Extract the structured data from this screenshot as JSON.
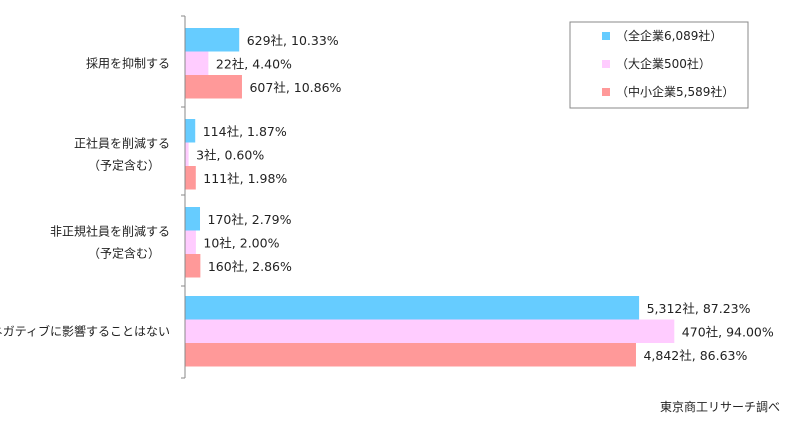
{
  "chart_data": {
    "type": "bar",
    "orientation": "horizontal",
    "categories": [
      [
        "採用を抑制する"
      ],
      [
        "正社員を削減する",
        "（予定含む）"
      ],
      [
        "非正規社員を削減する",
        "（予定含む）"
      ],
      [
        "ネガティブに影響することはない"
      ]
    ],
    "series": [
      {
        "name": "（全企業6,089社）",
        "color": "#66ccff",
        "values": [
          10.33,
          1.87,
          2.79,
          87.23
        ],
        "labels": [
          "629社, 10.33%",
          "114社, 1.87%",
          "170社, 2.79%",
          "5,312社, 87.23%"
        ]
      },
      {
        "name": "（大企業500社）",
        "color": "#ffccff",
        "values": [
          4.4,
          0.6,
          2.0,
          94.0
        ],
        "labels": [
          "22社, 4.40%",
          "3社, 0.60%",
          "10社, 2.00%",
          "470社, 94.00%"
        ]
      },
      {
        "name": "（中小企業5,589社）",
        "color": "#ff9999",
        "values": [
          10.86,
          1.98,
          2.86,
          86.63
        ],
        "labels": [
          "607社, 10.86%",
          "111社, 1.98%",
          "160社, 2.86%",
          "4,842社, 86.63%"
        ]
      }
    ],
    "xlim": [
      0,
      100
    ],
    "grid": false,
    "legend_position": "top-right"
  },
  "source_note": "東京商工リサーチ調べ"
}
